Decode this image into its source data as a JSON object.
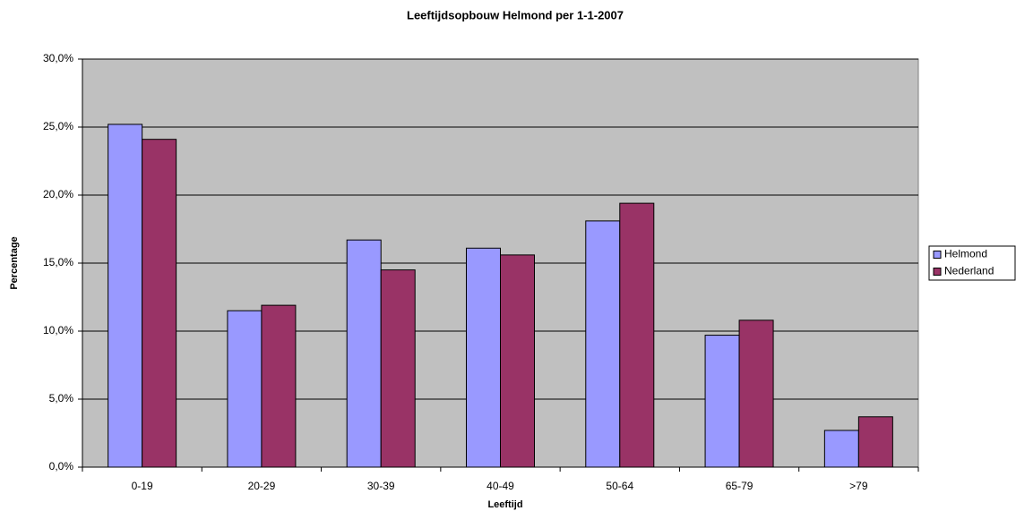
{
  "chart_data": {
    "type": "bar",
    "title": "Leeftijdsopbouw Helmond per 1-1-2007",
    "x_label": "Leeftijd",
    "y_label": "Percentage",
    "categories": [
      "0-19",
      "20-29",
      "30-39",
      "40-49",
      "50-64",
      "65-79",
      ">79"
    ],
    "series": [
      {
        "name": "Helmond",
        "color": "#9999ff",
        "values": [
          25.2,
          11.5,
          16.7,
          16.1,
          18.1,
          9.7,
          2.7
        ]
      },
      {
        "name": "Nederland",
        "color": "#993366",
        "values": [
          24.1,
          11.9,
          14.5,
          15.6,
          19.4,
          10.8,
          3.7
        ]
      }
    ],
    "ylim": [
      0,
      30
    ],
    "yticks": [
      {
        "value": 0,
        "label": "0,0%"
      },
      {
        "value": 5,
        "label": "5,0%"
      },
      {
        "value": 10,
        "label": "10,0%"
      },
      {
        "value": 15,
        "label": "15,0%"
      },
      {
        "value": 20,
        "label": "20,0%"
      },
      {
        "value": 25,
        "label": "25,0%"
      },
      {
        "value": 30,
        "label": "30,0%"
      }
    ],
    "grid": true,
    "plot_background": "#c0c0c0",
    "legend": "right"
  }
}
